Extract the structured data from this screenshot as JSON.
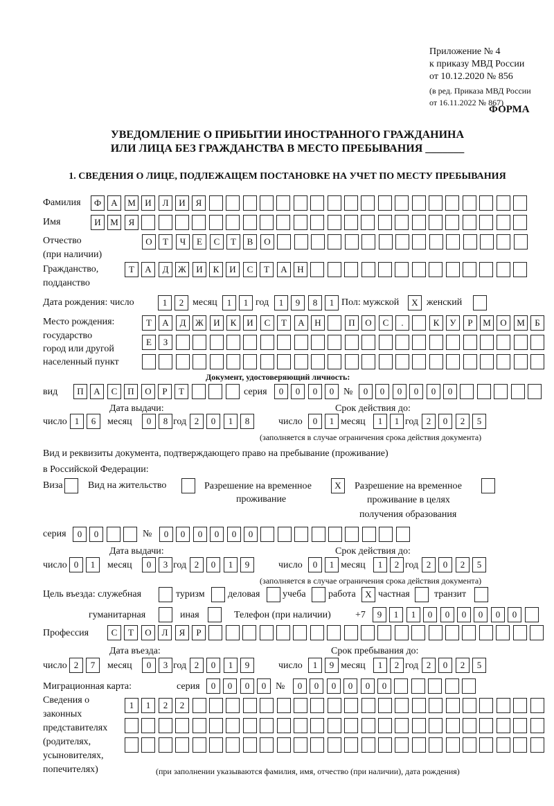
{
  "header": {
    "l1": "Приложение № 4",
    "l2": "к приказу МВД России",
    "l3": "от 10.12.2020 № 856",
    "l4": "(в ред. Приказа МВД России",
    "l5": "от 16.11.2022 № 867)",
    "forma": "ФОРМА",
    "title1": "УВЕДОМЛЕНИЕ О ПРИБЫТИИ ИНОСТРАННОГО ГРАЖДАНИНА",
    "title2": "ИЛИ ЛИЦА БЕЗ ГРАЖДАНСТВА В МЕСТО ПРЕБЫВАНИЯ _______",
    "section1": "1. СВЕДЕНИЯ О ЛИЦЕ, ПОДЛЕЖАЩЕМ ПОСТАНОВКЕ НА УЧЕТ ПО МЕСТУ ПРЕБЫВАНИЯ"
  },
  "labels": {
    "surname": "Фамилия",
    "name": "Имя",
    "patronymic": "Отчество",
    "patronymic2": "(при наличии)",
    "citizenship": "Гражданство,",
    "citizenship2": "подданство",
    "birth_date": "Дата рождения:  число",
    "month": "месяц",
    "year": "год",
    "day": "число",
    "sex": "Пол: мужской",
    "female": "женский",
    "birthplace1": "Место рождения:",
    "birthplace2": "государство",
    "birthplace3": "город или другой",
    "birthplace4": "населенный пункт",
    "id_doc": "Документ, удостоверяющий личность:",
    "kind": "вид",
    "series": "серия",
    "number": "№",
    "issue_date": "Дата выдачи:",
    "valid_until": "Срок действия до:",
    "note_validity": "(заполняется в случае ограничения срока действия документа)",
    "stay_doc1": "Вид и реквизиты документа, подтверждающего право на пребывание (проживание)",
    "stay_doc2": "в Российской Федерации:",
    "visa": "Виза",
    "residence": "Вид на жительство",
    "temp1": "Разрешение на временное",
    "temp2": "проживание",
    "edu1": "Разрешение на временное",
    "edu2": "проживание в целях",
    "edu3": "получения образования",
    "purpose": "Цель въезда: служебная",
    "tourism": "туризм",
    "business": "деловая",
    "study": "учеба",
    "work": "работа",
    "private": "частная",
    "transit": "транзит",
    "humanitarian": "гуманитарная",
    "other": "иная",
    "phone": "Телефон (при наличии)",
    "phone_prefix": "+7",
    "profession": "Профессия",
    "entry_date": "Дата въезда:",
    "stay_until": "Срок пребывания до:",
    "migration_card": "Миграционная карта:",
    "rep1": "Сведения о",
    "rep2": "законных",
    "rep3": "представителях",
    "rep4": "(родителях,",
    "rep5": "усыновителях,",
    "rep6": "попечителях)",
    "note_rep": "(при заполнении указываются фамилия, имя, отчество (при наличии), дата рождения)"
  },
  "values": {
    "surname": "ФАМИЛИЯ",
    "name": "ИМЯ",
    "patronymic": "ОТЧЕСТВО",
    "citizenship": "ТАДЖИКИСТАН",
    "birth_day": "12",
    "birth_month": "11",
    "birth_year": "1981",
    "male": "X",
    "female": "",
    "birthplace1": "ТАДЖИКИСТАН ПОС. КУРМОМБ",
    "birthplace2": "ЕЗ",
    "birthplace3": "",
    "id_kind": "ПАСПОРТ",
    "id_series": "0000",
    "id_number": "000000",
    "id_issue_day": "16",
    "id_issue_month": "08",
    "id_issue_year": "2018",
    "id_valid_day": "01",
    "id_valid_month": "11",
    "id_valid_year": "2025",
    "visa": "",
    "residence": "",
    "temp_residence": "X",
    "edu_residence": "",
    "stay_series": "00",
    "stay_number": "000000",
    "stay_issue_day": "01",
    "stay_issue_month": "03",
    "stay_issue_year": "2019",
    "stay_valid_day": "01",
    "stay_valid_month": "12",
    "stay_valid_year": "2025",
    "p_official": "",
    "p_tourism": "",
    "p_business": "",
    "p_study": "",
    "p_work": "X",
    "p_private": "",
    "p_transit": "",
    "p_humanitarian": "",
    "p_other": "",
    "phone": "911000000",
    "profession": "СТОЛЯР",
    "entry_day": "27",
    "entry_month": "03",
    "entry_year": "2019",
    "until_day": "19",
    "until_month": "12",
    "until_year": "2025",
    "mc_series": "0000",
    "mc_number": "000000",
    "rep1": "1122",
    "rep2": "",
    "rep3": ""
  }
}
